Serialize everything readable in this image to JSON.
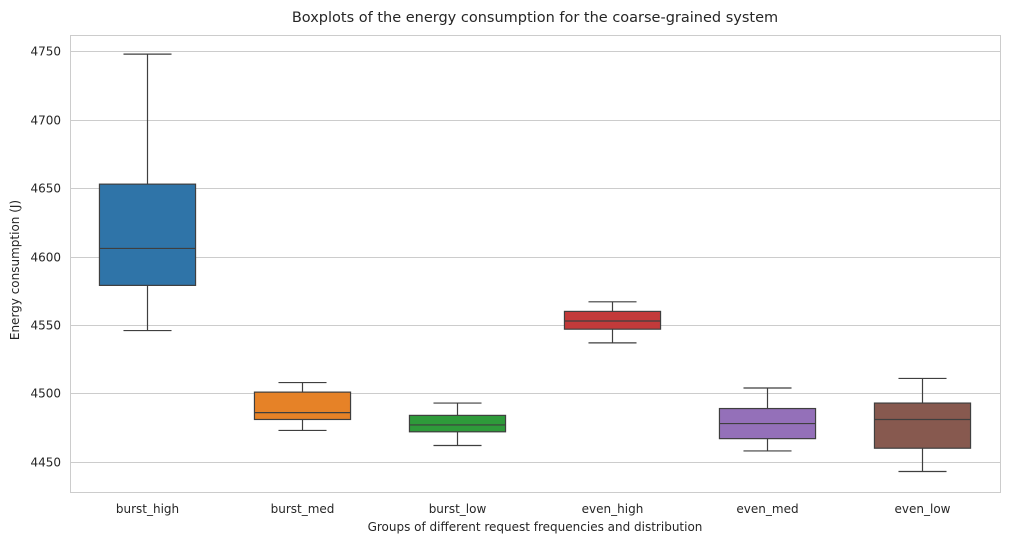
{
  "chart_data": {
    "type": "boxplot",
    "title": "Boxplots of the energy consumption for the coarse-grained system",
    "xlabel": "Groups of different request frequencies and distribution",
    "ylabel": "Energy consumption (J)",
    "ylim": [
      4428,
      4762
    ],
    "yticks": [
      4450,
      4500,
      4550,
      4600,
      4650,
      4700,
      4750
    ],
    "grid": true,
    "categories": [
      "burst_high",
      "burst_med",
      "burst_low",
      "even_high",
      "even_med",
      "even_low"
    ],
    "colors": [
      "#2f74a8",
      "#e68227",
      "#2e9a3a",
      "#c33a3a",
      "#9470b9",
      "#87594f"
    ],
    "boxes": [
      {
        "name": "burst_high",
        "whisker_low": 4546,
        "q1": 4579,
        "median": 4606,
        "q3": 4653,
        "whisker_high": 4748
      },
      {
        "name": "burst_med",
        "whisker_low": 4473,
        "q1": 4481,
        "median": 4486,
        "q3": 4501,
        "whisker_high": 4508
      },
      {
        "name": "burst_low",
        "whisker_low": 4462,
        "q1": 4472,
        "median": 4477,
        "q3": 4484,
        "whisker_high": 4493
      },
      {
        "name": "even_high",
        "whisker_low": 4537,
        "q1": 4547,
        "median": 4553,
        "q3": 4560,
        "whisker_high": 4567
      },
      {
        "name": "even_med",
        "whisker_low": 4458,
        "q1": 4467,
        "median": 4478,
        "q3": 4489,
        "whisker_high": 4504
      },
      {
        "name": "even_low",
        "whisker_low": 4443,
        "q1": 4460,
        "median": 4481,
        "q3": 4493,
        "whisker_high": 4511
      }
    ]
  }
}
